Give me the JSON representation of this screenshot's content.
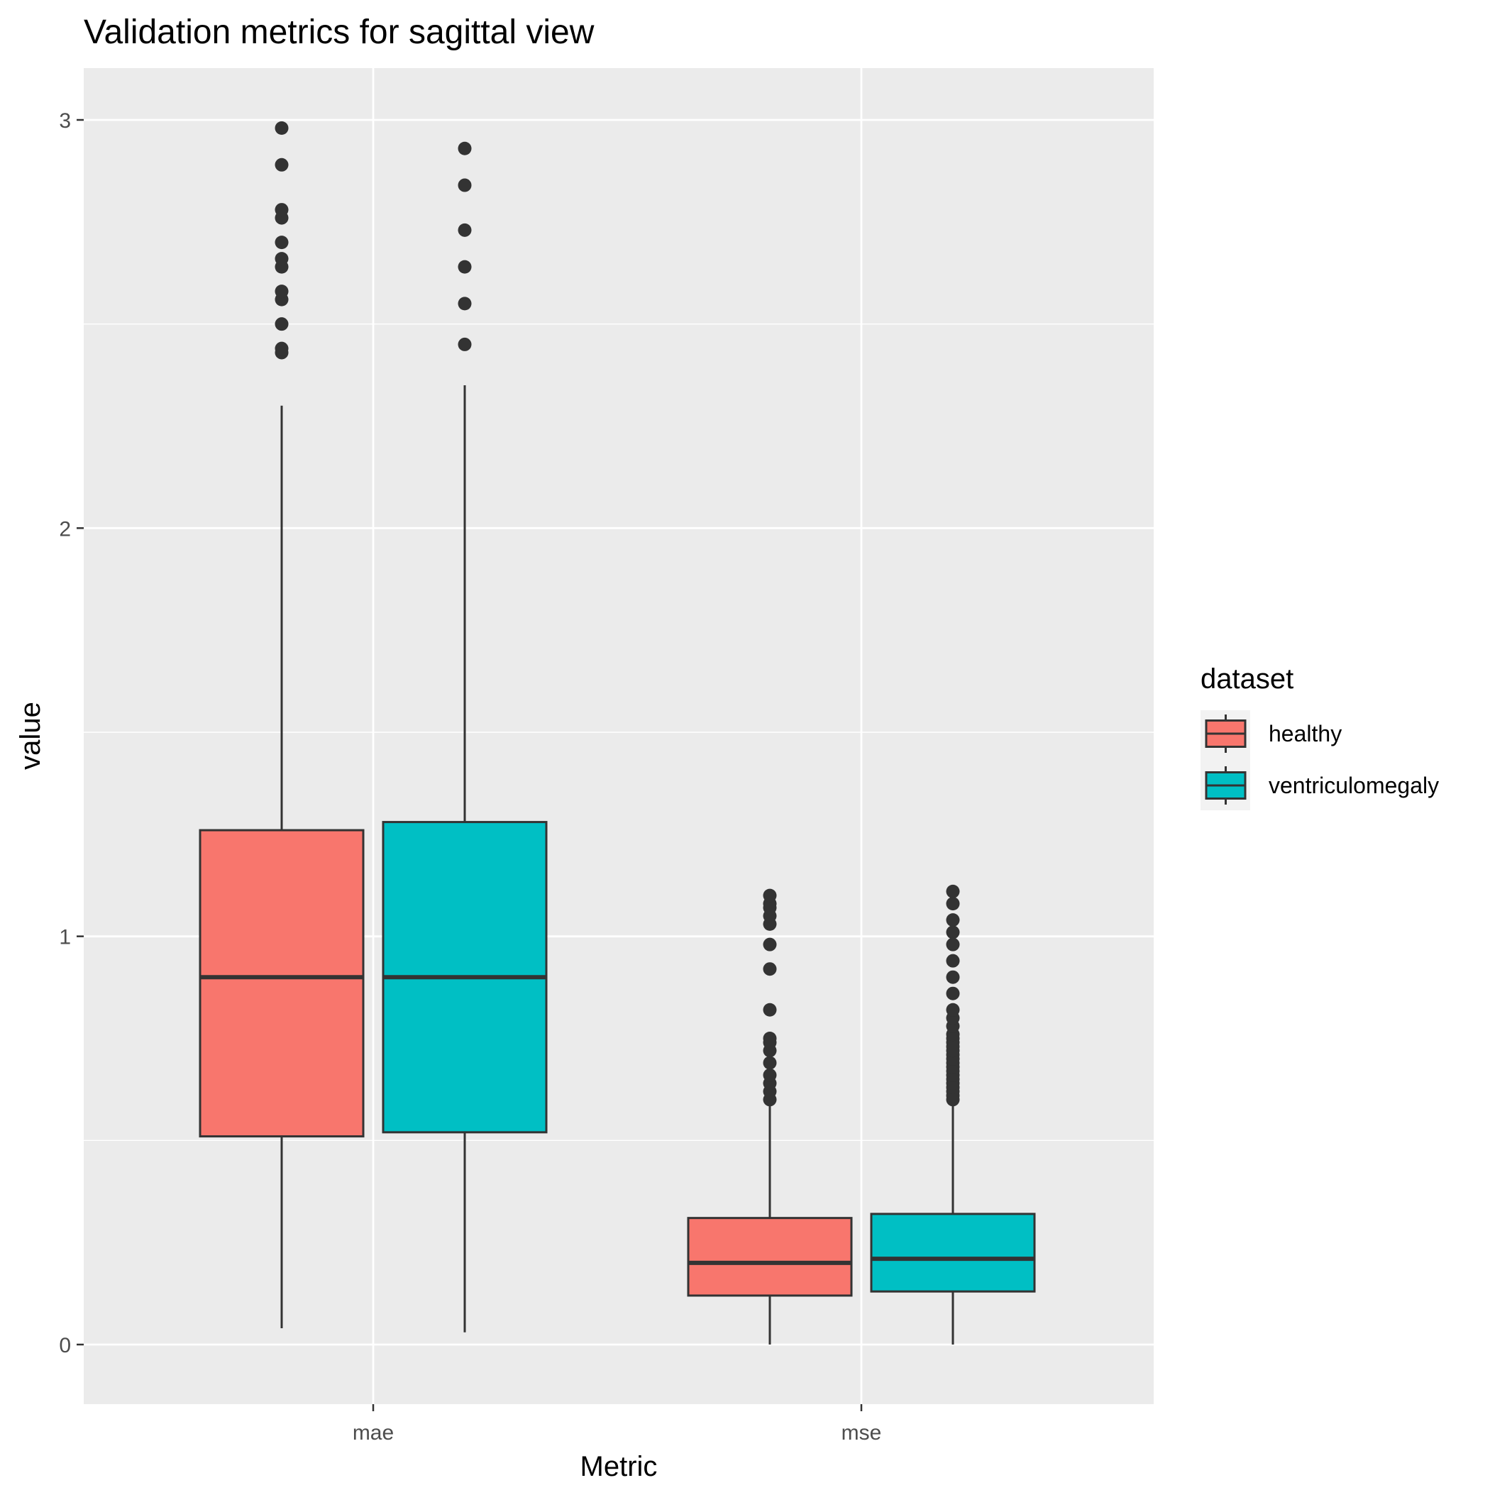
{
  "chart_data": {
    "type": "boxplot",
    "title": "Validation metrics for  sagittal  view",
    "xlabel": "Metric",
    "ylabel": "value",
    "categories": [
      "mae",
      "mse"
    ],
    "ylim": [
      -0.14,
      3.13
    ],
    "yticks": [
      0,
      1,
      2,
      3
    ],
    "grid": true,
    "legend": {
      "title": "dataset",
      "position": "right",
      "entries": [
        {
          "label": "healthy",
          "color": "#F8766D"
        },
        {
          "label": "ventriculomegaly",
          "color": "#00BFC4"
        }
      ]
    },
    "series": [
      {
        "name": "healthy",
        "color": "#F8766D",
        "boxes": [
          {
            "category": "mae",
            "whisker_low": 0.04,
            "q1": 0.51,
            "median": 0.9,
            "q3": 1.26,
            "whisker_high": 2.3,
            "outliers": [
              2.43,
              2.44,
              2.5,
              2.56,
              2.58,
              2.64,
              2.66,
              2.7,
              2.76,
              2.78,
              2.89,
              2.98
            ]
          },
          {
            "category": "mse",
            "whisker_low": 0.0,
            "q1": 0.12,
            "median": 0.2,
            "q3": 0.31,
            "whisker_high": 0.6,
            "outliers": [
              0.6,
              0.62,
              0.64,
              0.66,
              0.69,
              0.72,
              0.74,
              0.75,
              0.82,
              0.92,
              0.98,
              1.03,
              1.05,
              1.07,
              1.08,
              1.1
            ]
          }
        ]
      },
      {
        "name": "ventriculomegaly",
        "color": "#00BFC4",
        "boxes": [
          {
            "category": "mae",
            "whisker_low": 0.03,
            "q1": 0.52,
            "median": 0.9,
            "q3": 1.28,
            "whisker_high": 2.35,
            "outliers": [
              2.45,
              2.55,
              2.64,
              2.73,
              2.84,
              2.93
            ]
          },
          {
            "category": "mse",
            "whisker_low": 0.0,
            "q1": 0.13,
            "median": 0.21,
            "q3": 0.32,
            "whisker_high": 0.6,
            "outliers": [
              0.6,
              0.61,
              0.62,
              0.63,
              0.64,
              0.65,
              0.66,
              0.67,
              0.68,
              0.69,
              0.7,
              0.71,
              0.72,
              0.73,
              0.74,
              0.75,
              0.76,
              0.78,
              0.8,
              0.82,
              0.86,
              0.9,
              0.94,
              0.98,
              1.01,
              1.04,
              1.08,
              1.11
            ]
          }
        ]
      }
    ]
  }
}
